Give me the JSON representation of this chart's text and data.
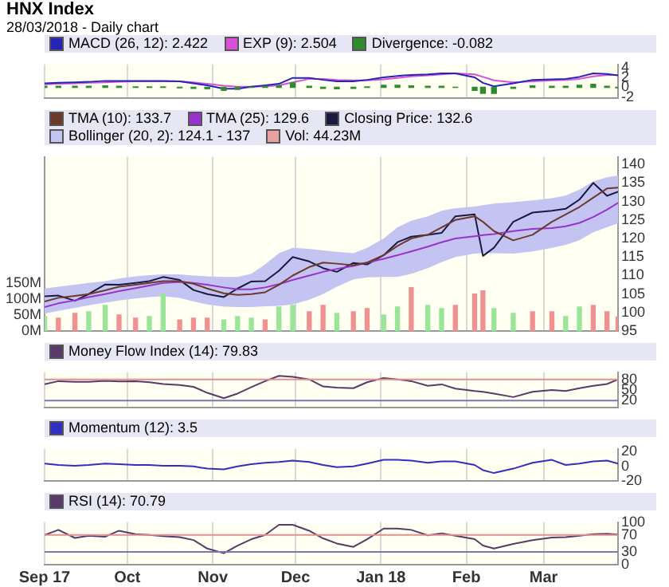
{
  "chart_data": [
    {
      "type": "line",
      "title": "HNX Index",
      "subtitle": "28/03/2018 - Daily chart",
      "legend": "top left",
      "grid": "x",
      "marker": "none",
      "tick_labels": "y",
      "x": [
        "2017-09-01",
        "2017-09-06",
        "2017-09-12",
        "2017-09-17",
        "2017-09-23",
        "2017-09-28",
        "2017-10-04",
        "2017-10-09",
        "2017-10-14",
        "2017-10-20",
        "2017-10-25",
        "2017-10-30",
        "2017-11-05",
        "2017-11-10",
        "2017-11-15",
        "2017-11-20",
        "2017-11-25",
        "2017-11-30",
        "2017-12-06",
        "2017-12-11",
        "2017-12-16",
        "2017-12-22",
        "2017-12-27",
        "2018-01-02",
        "2018-01-07",
        "2018-01-12",
        "2018-01-18",
        "2018-01-23",
        "2018-01-28",
        "2018-02-04",
        "2018-02-07",
        "2018-02-11",
        "2018-02-18",
        "2018-02-25",
        "2018-03-04",
        "2018-03-09",
        "2018-03-14",
        "2018-03-19",
        "2018-03-24",
        "2018-03-28"
      ],
      "xlim": [
        "2017-09-01",
        "2018-03-28"
      ],
      "xticks": [
        {
          "value": "2017-09-01",
          "label": null
        },
        {
          "value": "2017-10-01",
          "label": null
        },
        {
          "value": "2017-11-01",
          "label": null
        },
        {
          "value": "2017-12-01",
          "label": null
        },
        {
          "value": "2018-01-01",
          "label": null
        },
        {
          "value": "2018-02-01",
          "label": null
        },
        {
          "value": "2018-03-01",
          "label": null
        }
      ],
      "ylim": [
        -2.2,
        4.6
      ],
      "yticks": [
        -2,
        0,
        2,
        4
      ],
      "series": [
        {
          "name": "MACD (26, 12): 2.422",
          "color": "#2424b8",
          "values": [
            0.8,
            0.9,
            1,
            1.1,
            1.3,
            1.3,
            1.3,
            1.3,
            1.3,
            1.2,
            0.8,
            0.4,
            -0.3,
            -0.3,
            0.1,
            0.4,
            0.7,
            1.9,
            1.9,
            1.5,
            1.2,
            1.2,
            1.5,
            2,
            2.3,
            2.5,
            2.6,
            2.8,
            2.8,
            2,
            0.9,
            0.2,
            0.8,
            1.5,
            1.6,
            1.7,
            2.1,
            2.8,
            2.7,
            2.4
          ]
        },
        {
          "name": "EXP (9): 2.504",
          "color": "#d850d8",
          "values": [
            0.6,
            0.7,
            0.8,
            0.9,
            1,
            1.1,
            1.2,
            1.2,
            1.2,
            1.2,
            1,
            0.7,
            0.3,
            0.1,
            0.1,
            0.2,
            0.4,
            1,
            1.7,
            1.7,
            1.5,
            1.4,
            1.4,
            1.6,
            1.9,
            2.2,
            2.4,
            2.6,
            2.8,
            2.6,
            2.1,
            1.4,
            1,
            1.2,
            1.4,
            1.5,
            1.7,
            2.2,
            2.5,
            2.5
          ]
        },
        {
          "name": "Divergence: -0.082",
          "type": "bar",
          "color": "#2e8b2e",
          "values": [
            0.2,
            0.2,
            0.2,
            0.2,
            0.3,
            0.2,
            0.1,
            0.1,
            0.1,
            -0.1,
            -0.2,
            -0.3,
            -0.6,
            -0.4,
            0,
            0.2,
            0.3,
            0.9,
            0.2,
            -0.2,
            -0.3,
            -0.2,
            0.1,
            0.4,
            0.4,
            0.3,
            0.2,
            0.2,
            0,
            -0.6,
            -1.2,
            -1.2,
            -0.2,
            0.3,
            0.2,
            0.2,
            0.4,
            0.6,
            0.2,
            -0.1
          ]
        }
      ]
    },
    {
      "type": "line",
      "legend": "top left",
      "grid": "x",
      "marker": "none",
      "tick_labels": "y",
      "x": [
        "2017-09-01",
        "2017-09-06",
        "2017-09-12",
        "2017-09-17",
        "2017-09-23",
        "2017-09-28",
        "2017-10-04",
        "2017-10-09",
        "2017-10-14",
        "2017-10-20",
        "2017-10-25",
        "2017-10-30",
        "2017-11-05",
        "2017-11-10",
        "2017-11-15",
        "2017-11-20",
        "2017-11-25",
        "2017-11-30",
        "2017-12-06",
        "2017-12-11",
        "2017-12-16",
        "2017-12-22",
        "2017-12-27",
        "2018-01-02",
        "2018-01-07",
        "2018-01-12",
        "2018-01-18",
        "2018-01-23",
        "2018-01-28",
        "2018-02-04",
        "2018-02-07",
        "2018-02-11",
        "2018-02-18",
        "2018-02-25",
        "2018-03-04",
        "2018-03-09",
        "2018-03-14",
        "2018-03-19",
        "2018-03-24",
        "2018-03-28"
      ],
      "xlim": [
        "2017-09-01",
        "2018-03-28"
      ],
      "xticks": [
        {
          "value": "2017-09-01",
          "label": null
        },
        {
          "value": "2017-10-01",
          "label": null
        },
        {
          "value": "2017-11-01",
          "label": null
        },
        {
          "value": "2017-12-01",
          "label": null
        },
        {
          "value": "2018-01-01",
          "label": null
        },
        {
          "value": "2018-02-01",
          "label": null
        },
        {
          "value": "2018-03-01",
          "label": null
        }
      ],
      "ylim": [
        95,
        142
      ],
      "yticks": [
        95,
        100,
        105,
        110,
        115,
        120,
        125,
        130,
        135,
        140
      ],
      "y2lim": [
        0,
        540
      ],
      "y2ticks": [
        {
          "value": 0,
          "label": "0M"
        },
        {
          "value": 50,
          "label": "50M"
        },
        {
          "value": 100,
          "label": "100M"
        },
        {
          "value": 150,
          "label": "150M"
        }
      ],
      "series": [
        {
          "name": "TMA (10): 133.7",
          "color": "#6b3a2a",
          "values": [
            103,
            104,
            104.5,
            105,
            106,
            107,
            107.5,
            108,
            108.5,
            108.5,
            107.8,
            106.5,
            105.2,
            104.8,
            105,
            105.5,
            107.5,
            110,
            112.3,
            113.5,
            113.2,
            112.8,
            113.5,
            115.5,
            118,
            120,
            121,
            123,
            125,
            126,
            124.5,
            122,
            119.5,
            121,
            124.5,
            126.5,
            128.5,
            131,
            133.5,
            133.7
          ]
        },
        {
          "name": "TMA (25): 129.6",
          "color": "#9933cc",
          "values": [
            101.5,
            102.5,
            103.3,
            104.2,
            105,
            105.8,
            106.6,
            107.3,
            108,
            108.3,
            108,
            107.5,
            106.8,
            106.3,
            106.3,
            106.8,
            107.7,
            108.8,
            110,
            111,
            111.8,
            112.6,
            113.5,
            114.5,
            115.5,
            116.5,
            117.8,
            119,
            120,
            120.6,
            120.9,
            121.2,
            122,
            122.6,
            122.8,
            123.3,
            124.2,
            125.8,
            127.8,
            129.6
          ]
        },
        {
          "name": "Closing Price: 132.6",
          "color": "#1a1a40",
          "values": [
            104.4,
            104.6,
            103.2,
            105,
            107.6,
            107.5,
            108,
            108.5,
            109.6,
            108.8,
            106.1,
            105,
            104.2,
            106.5,
            108.4,
            108.5,
            111.3,
            115,
            113.8,
            112,
            111,
            113.4,
            113,
            115.5,
            119,
            120.5,
            121,
            121.5,
            126,
            126.5,
            115.3,
            117.5,
            124.5,
            127,
            127.5,
            128,
            130.5,
            135,
            131.5,
            132.6
          ]
        },
        {
          "name": "Bollinger (20, 2): 124.1 - 137",
          "type": "area",
          "color": "#c4c4f2",
          "values": [
            null,
            null,
            null,
            null,
            null,
            null,
            null,
            null,
            null,
            null,
            null,
            null,
            null,
            null,
            null,
            null,
            null,
            null,
            null,
            null,
            null,
            null,
            null,
            null,
            null,
            null,
            null,
            null,
            null,
            null,
            null,
            null,
            null,
            null,
            null,
            null,
            null,
            null,
            null,
            null
          ],
          "upper": [
            106.5,
            107,
            107.5,
            108,
            108.5,
            109.2,
            109.8,
            110.1,
            110.3,
            110.3,
            110,
            109.8,
            109.6,
            109.6,
            110.5,
            113,
            116,
            117.5,
            117.2,
            116.8,
            116.4,
            116,
            117.5,
            120,
            123,
            124.8,
            126,
            127.5,
            128.2,
            128.6,
            129,
            129.4,
            129.8,
            130.3,
            130.9,
            131.6,
            133.2,
            135.4,
            136.5,
            137
          ],
          "lower": [
            99.7,
            100.5,
            101.3,
            102,
            102.7,
            103.3,
            103.8,
            104.2,
            104.4,
            104,
            103,
            102.2,
            101.6,
            101.5,
            101.5,
            101.7,
            101.8,
            102.2,
            103.5,
            105,
            107,
            109,
            109.5,
            109.6,
            109.6,
            110.5,
            112,
            113.6,
            115,
            115.9,
            116,
            116,
            115.9,
            116.5,
            117.5,
            118.3,
            119.5,
            121.7,
            123,
            124.1
          ]
        },
        {
          "name": "Vol: 44.23M",
          "type": "bar",
          "axis": "y2",
          "color": "#e8a0a0",
          "values": [
            45,
            40,
            55,
            60,
            80,
            50,
            40,
            45,
            115,
            35,
            40,
            40,
            35,
            45,
            40,
            35,
            75,
            80,
            60,
            80,
            55,
            60,
            70,
            50,
            75,
            135,
            80,
            70,
            80,
            115,
            125,
            70,
            55,
            60,
            60,
            45,
            75,
            80,
            60,
            44
          ],
          "colors": [
            "#99e699",
            "#f09090",
            "#f09090",
            "#99e699",
            "#99e699",
            "#f09090",
            "#f09090",
            "#99e699",
            "#99e699",
            "#f09090",
            "#f09090",
            "#f09090",
            "#99e699",
            "#99e699",
            "#99e699",
            "#f09090",
            "#99e699",
            "#99e699",
            "#f09090",
            "#f09090",
            "#99e699",
            "#f09090",
            "#f09090",
            "#99e699",
            "#99e699",
            "#f09090",
            "#99e699",
            "#99e699",
            "#f09090",
            "#f09090",
            "#f09090",
            "#99e699",
            "#99e699",
            "#f09090",
            "#f09090",
            "#99e699",
            "#99e699",
            "#f09090",
            "#f09090",
            "#f09090"
          ]
        }
      ]
    },
    {
      "type": "line",
      "legend": "top left",
      "grid": "x",
      "marker": "none",
      "tick_labels": "y",
      "x": [
        "2017-09-01",
        "2017-09-06",
        "2017-09-12",
        "2017-09-17",
        "2017-09-23",
        "2017-09-28",
        "2017-10-04",
        "2017-10-09",
        "2017-10-14",
        "2017-10-20",
        "2017-10-25",
        "2017-10-30",
        "2017-11-05",
        "2017-11-10",
        "2017-11-15",
        "2017-11-20",
        "2017-11-25",
        "2017-11-30",
        "2017-12-06",
        "2017-12-11",
        "2017-12-16",
        "2017-12-22",
        "2017-12-27",
        "2018-01-02",
        "2018-01-07",
        "2018-01-12",
        "2018-01-18",
        "2018-01-23",
        "2018-01-28",
        "2018-02-04",
        "2018-02-07",
        "2018-02-11",
        "2018-02-18",
        "2018-02-25",
        "2018-03-04",
        "2018-03-09",
        "2018-03-14",
        "2018-03-19",
        "2018-03-24",
        "2018-03-28"
      ],
      "xlim": [
        "2017-09-01",
        "2018-03-28"
      ],
      "xticks": [
        {
          "value": "2017-09-01",
          "label": null
        },
        {
          "value": "2017-10-01",
          "label": null
        },
        {
          "value": "2017-11-01",
          "label": null
        },
        {
          "value": "2017-12-01",
          "label": null
        },
        {
          "value": "2018-01-01",
          "label": null
        },
        {
          "value": "2018-02-01",
          "label": null
        },
        {
          "value": "2018-03-01",
          "label": null
        }
      ],
      "ylim": [
        0,
        100
      ],
      "yticks": [
        20,
        50,
        80
      ],
      "ref_lines": [
        {
          "axis": "y",
          "value": 80,
          "color": "#e09090"
        },
        {
          "axis": "y",
          "value": 20,
          "color": "#7878b8"
        }
      ],
      "series": [
        {
          "name": "Money Flow Index (14): 79.83",
          "color": "#5a3a6a",
          "values": [
            66,
            75,
            73,
            73,
            76,
            74,
            75,
            72,
            67,
            64,
            59,
            42,
            27,
            40,
            58,
            75,
            90,
            87,
            80,
            60,
            57,
            55,
            72,
            84,
            80,
            75,
            62,
            66,
            54,
            47,
            45,
            40,
            30,
            45,
            50,
            47,
            55,
            62,
            67,
            80
          ]
        }
      ]
    },
    {
      "type": "line",
      "legend": "top left",
      "grid": "x",
      "marker": "none",
      "tick_labels": "y",
      "x": [
        "2017-09-01",
        "2017-09-06",
        "2017-09-12",
        "2017-09-17",
        "2017-09-23",
        "2017-09-28",
        "2017-10-04",
        "2017-10-09",
        "2017-10-14",
        "2017-10-20",
        "2017-10-25",
        "2017-10-30",
        "2017-11-05",
        "2017-11-10",
        "2017-11-15",
        "2017-11-20",
        "2017-11-25",
        "2017-11-30",
        "2017-12-06",
        "2017-12-11",
        "2017-12-16",
        "2017-12-22",
        "2017-12-27",
        "2018-01-02",
        "2018-01-07",
        "2018-01-12",
        "2018-01-18",
        "2018-01-23",
        "2018-01-28",
        "2018-02-04",
        "2018-02-07",
        "2018-02-11",
        "2018-02-18",
        "2018-02-25",
        "2018-03-04",
        "2018-03-09",
        "2018-03-14",
        "2018-03-19",
        "2018-03-24",
        "2018-03-28"
      ],
      "xlim": [
        "2017-09-01",
        "2018-03-28"
      ],
      "xticks": [
        {
          "value": "2017-09-01",
          "label": null
        },
        {
          "value": "2017-10-01",
          "label": null
        },
        {
          "value": "2017-11-01",
          "label": null
        },
        {
          "value": "2017-12-01",
          "label": null
        },
        {
          "value": "2018-01-01",
          "label": null
        },
        {
          "value": "2018-02-01",
          "label": null
        },
        {
          "value": "2018-03-01",
          "label": null
        }
      ],
      "ylim": [
        -20,
        24
      ],
      "yticks": [
        -20,
        0,
        20
      ],
      "series": [
        {
          "name": "Momentum (12): 3.5",
          "color": "#3030c0",
          "values": [
            4,
            2,
            1,
            2,
            4,
            3,
            2,
            2,
            1,
            1,
            0,
            -3,
            -4,
            0,
            3,
            5,
            6,
            8,
            6,
            2,
            -1,
            0,
            4,
            9,
            9,
            8,
            5,
            7,
            7,
            2,
            -5,
            -9,
            -3,
            5,
            9,
            2,
            4,
            7,
            8,
            4
          ]
        }
      ]
    },
    {
      "type": "line",
      "legend": "top left",
      "grid": "x",
      "marker": "none",
      "x": [
        "2017-09-01",
        "2017-09-06",
        "2017-09-12",
        "2017-09-17",
        "2017-09-23",
        "2017-09-28",
        "2017-10-04",
        "2017-10-09",
        "2017-10-14",
        "2017-10-20",
        "2017-10-25",
        "2017-10-30",
        "2017-11-05",
        "2017-11-10",
        "2017-11-15",
        "2017-11-20",
        "2017-11-25",
        "2017-11-30",
        "2017-12-06",
        "2017-12-11",
        "2017-12-16",
        "2017-12-22",
        "2017-12-27",
        "2018-01-02",
        "2018-01-07",
        "2018-01-12",
        "2018-01-18",
        "2018-01-23",
        "2018-01-28",
        "2018-02-04",
        "2018-02-07",
        "2018-02-11",
        "2018-02-18",
        "2018-02-25",
        "2018-03-04",
        "2018-03-09",
        "2018-03-14",
        "2018-03-19",
        "2018-03-24",
        "2018-03-28"
      ],
      "xlim": [
        "2017-09-01",
        "2018-03-28"
      ],
      "xticks": [
        {
          "value": "2017-09-01",
          "label": "Sep 17"
        },
        {
          "value": "2017-10-01",
          "label": "Oct"
        },
        {
          "value": "2017-11-01",
          "label": "Nov"
        },
        {
          "value": "2017-12-01",
          "label": "Dec"
        },
        {
          "value": "2018-01-01",
          "label": "Jan 18"
        },
        {
          "value": "2018-02-01",
          "label": "Feb"
        },
        {
          "value": "2018-03-01",
          "label": "Mar"
        }
      ],
      "ylim": [
        0,
        100
      ],
      "yticks": [
        0,
        30,
        70,
        100
      ],
      "ref_lines": [
        {
          "axis": "y",
          "value": 70,
          "color": "#e09090"
        },
        {
          "axis": "y",
          "value": 30,
          "color": "#7878b8"
        }
      ],
      "series": [
        {
          "name": "RSI (14): 70.79",
          "color": "#5a3a6a",
          "values": [
            70,
            82,
            63,
            68,
            66,
            80,
            72,
            70,
            67,
            65,
            58,
            38,
            27,
            45,
            60,
            70,
            94,
            94,
            80,
            62,
            50,
            42,
            60,
            85,
            85,
            82,
            69,
            74,
            68,
            60,
            45,
            38,
            49,
            58,
            64,
            65,
            68,
            72,
            73,
            71
          ]
        }
      ]
    }
  ]
}
